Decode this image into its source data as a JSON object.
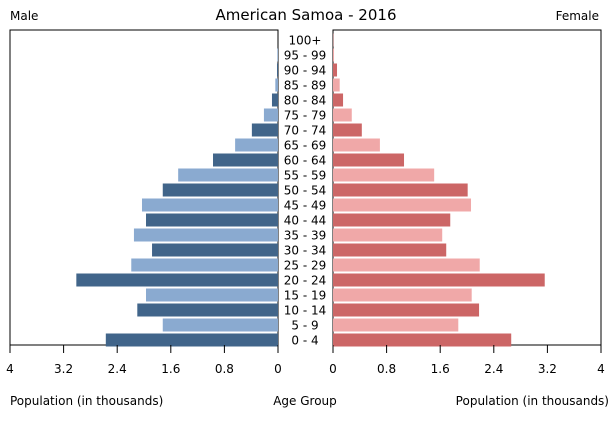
{
  "chart_data": {
    "type": "bar",
    "subtype": "population-pyramid",
    "title": "American Samoa - 2016",
    "left_label": "Male",
    "right_label": "Female",
    "xlabel_left": "Population (in thousands)",
    "xlabel_center": "Age Group",
    "xlabel_right": "Population (in thousands)",
    "xlim": [
      0,
      4
    ],
    "xticks": [
      "4",
      "3.2",
      "2.4",
      "1.6",
      "0.8",
      "0",
      "0",
      "0.8",
      "1.6",
      "2.4",
      "3.2",
      "4"
    ],
    "xtick_values": [
      0,
      0.8,
      1.6,
      2.4,
      3.2,
      4
    ],
    "grid": false,
    "categories": [
      "0 - 4",
      "5 - 9",
      "10 - 14",
      "15 - 19",
      "20 - 24",
      "25 - 29",
      "30 - 34",
      "35 - 39",
      "40 - 44",
      "45 - 49",
      "50 - 54",
      "55 - 59",
      "60 - 64",
      "65 - 69",
      "70 - 74",
      "75 - 79",
      "80 - 84",
      "85 - 89",
      "90 - 94",
      "95 - 99",
      "100+"
    ],
    "series": [
      {
        "name": "Male",
        "values": [
          2.57,
          1.72,
          2.1,
          1.97,
          3.01,
          2.19,
          1.88,
          2.15,
          1.97,
          2.03,
          1.72,
          1.49,
          0.97,
          0.64,
          0.39,
          0.21,
          0.09,
          0.04,
          0.015,
          0.01,
          0.0
        ]
      },
      {
        "name": "Female",
        "values": [
          2.66,
          1.87,
          2.18,
          2.07,
          3.16,
          2.19,
          1.69,
          1.63,
          1.75,
          2.06,
          2.01,
          1.51,
          1.06,
          0.7,
          0.43,
          0.28,
          0.15,
          0.1,
          0.06,
          0.015,
          0.005
        ]
      }
    ],
    "colors": {
      "male_dark": "#41658a",
      "male_light": "#8aaad0",
      "female_dark": "#cc6666",
      "female_light": "#f0a8a8"
    }
  }
}
